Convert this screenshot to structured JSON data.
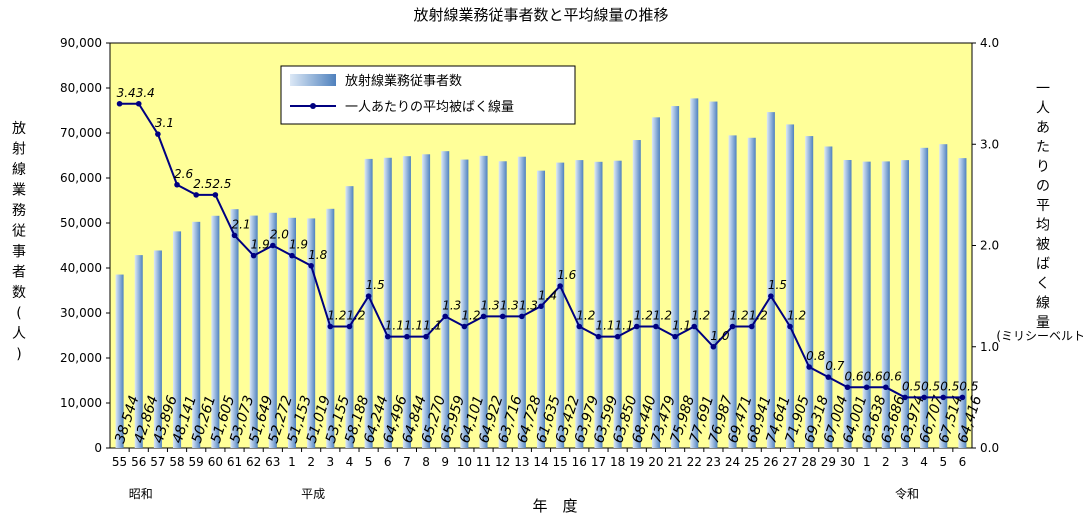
{
  "chart_data": {
    "type": "bar",
    "title": "放射線業務従事者数と平均線量の推移",
    "xlabel": "年　度",
    "ylabel_left": "放射線業務従事者数(人)",
    "ylabel_right_main": "一人あたりの平均被ばく線量",
    "ylabel_right_unit": "(ミリシーベルト)",
    "y_left_range": [
      0,
      90000
    ],
    "y_left_ticks": [
      "0",
      "10,000",
      "20,000",
      "30,000",
      "40,000",
      "50,000",
      "60,000",
      "70,000",
      "80,000",
      "90,000"
    ],
    "y_right_range": [
      0,
      4
    ],
    "y_right_ticks": [
      "0.0",
      "1.0",
      "2.0",
      "3.0",
      "4.0"
    ],
    "categories": [
      "55",
      "56",
      "57",
      "58",
      "59",
      "60",
      "61",
      "62",
      "63",
      "1",
      "2",
      "3",
      "4",
      "5",
      "6",
      "7",
      "8",
      "9",
      "10",
      "11",
      "12",
      "13",
      "14",
      "15",
      "16",
      "17",
      "18",
      "19",
      "20",
      "21",
      "22",
      "23",
      "24",
      "25",
      "26",
      "27",
      "28",
      "29",
      "30",
      "1",
      "2",
      "3",
      "4",
      "5",
      "6"
    ],
    "era_labels": [
      {
        "text": "昭和",
        "index": 1
      },
      {
        "text": "平成",
        "index": 10
      },
      {
        "text": "令和",
        "index": 41
      }
    ],
    "series": [
      {
        "name": "放射線業務従事者数",
        "kind": "bar",
        "values": [
          38544,
          42864,
          43896,
          48141,
          50261,
          51605,
          53073,
          51649,
          52272,
          51153,
          51019,
          53155,
          58188,
          64244,
          64496,
          64844,
          65270,
          65959,
          64101,
          64922,
          63716,
          64728,
          61635,
          63422,
          63979,
          63599,
          63850,
          68440,
          73479,
          75988,
          77691,
          76987,
          69471,
          68941,
          74641,
          71905,
          69318,
          67004,
          64001,
          63638,
          63686,
          63974,
          66707,
          67514,
          64416
        ],
        "labels": [
          "38,544",
          "42,864",
          "43,896",
          "48,141",
          "50,261",
          "51,605",
          "53,073",
          "51,649",
          "52,272",
          "51,153",
          "51,019",
          "53,155",
          "58,188",
          "64,244",
          "64,496",
          "64,844",
          "65,270",
          "65,959",
          "64,101",
          "64,922",
          "63,716",
          "64,728",
          "61,635",
          "63,422",
          "63,979",
          "63,599",
          "63,850",
          "68,440",
          "73,479",
          "75,988",
          "77,691",
          "76,987",
          "69,471",
          "68,941",
          "74,641",
          "71,905",
          "69,318",
          "67,004",
          "64,001",
          "63,638",
          "63,686",
          "63,974",
          "66,707",
          "67,514",
          "64,416"
        ]
      },
      {
        "name": "一人あたりの平均被ばく線量",
        "kind": "line",
        "values": [
          3.4,
          3.4,
          3.1,
          2.6,
          2.5,
          2.5,
          2.1,
          1.9,
          2.0,
          1.9,
          1.8,
          1.2,
          1.2,
          1.5,
          1.1,
          1.1,
          1.1,
          1.3,
          1.2,
          1.3,
          1.3,
          1.3,
          1.4,
          1.6,
          1.2,
          1.1,
          1.1,
          1.2,
          1.2,
          1.1,
          1.2,
          1.0,
          1.2,
          1.2,
          1.5,
          1.2,
          0.8,
          0.7,
          0.6,
          0.6,
          0.6,
          0.5,
          0.5,
          0.5,
          0.5
        ],
        "labels": [
          "3.4",
          "3.4",
          "3.1",
          "2.6",
          "2.5",
          "2.5",
          "2.1",
          "1.9",
          "2.0",
          "1.9",
          "1.8",
          "1.2",
          "1.2",
          "1.5",
          "1.1",
          "1.1",
          "1.1",
          "1.3",
          "1.2",
          "1.3",
          "1.3",
          "1.3",
          "1.4",
          "1.6",
          "1.2",
          "1.1",
          "1.1",
          "1.2",
          "1.2",
          "1.1",
          "1.2",
          "1.0",
          "1.2",
          "1.2",
          "1.5",
          "1.2",
          "0.8",
          "0.7",
          "0.6",
          "0.6",
          "0.6",
          "0.5",
          "0.5",
          "0.5",
          "0.5"
        ]
      }
    ],
    "legend_position": "top-left inside plot",
    "grid": false,
    "colors": {
      "plot_bg": "#ffff99",
      "bar_light": "#c6d9f1",
      "bar_dark": "#4f81bd",
      "line": "#000080"
    }
  }
}
